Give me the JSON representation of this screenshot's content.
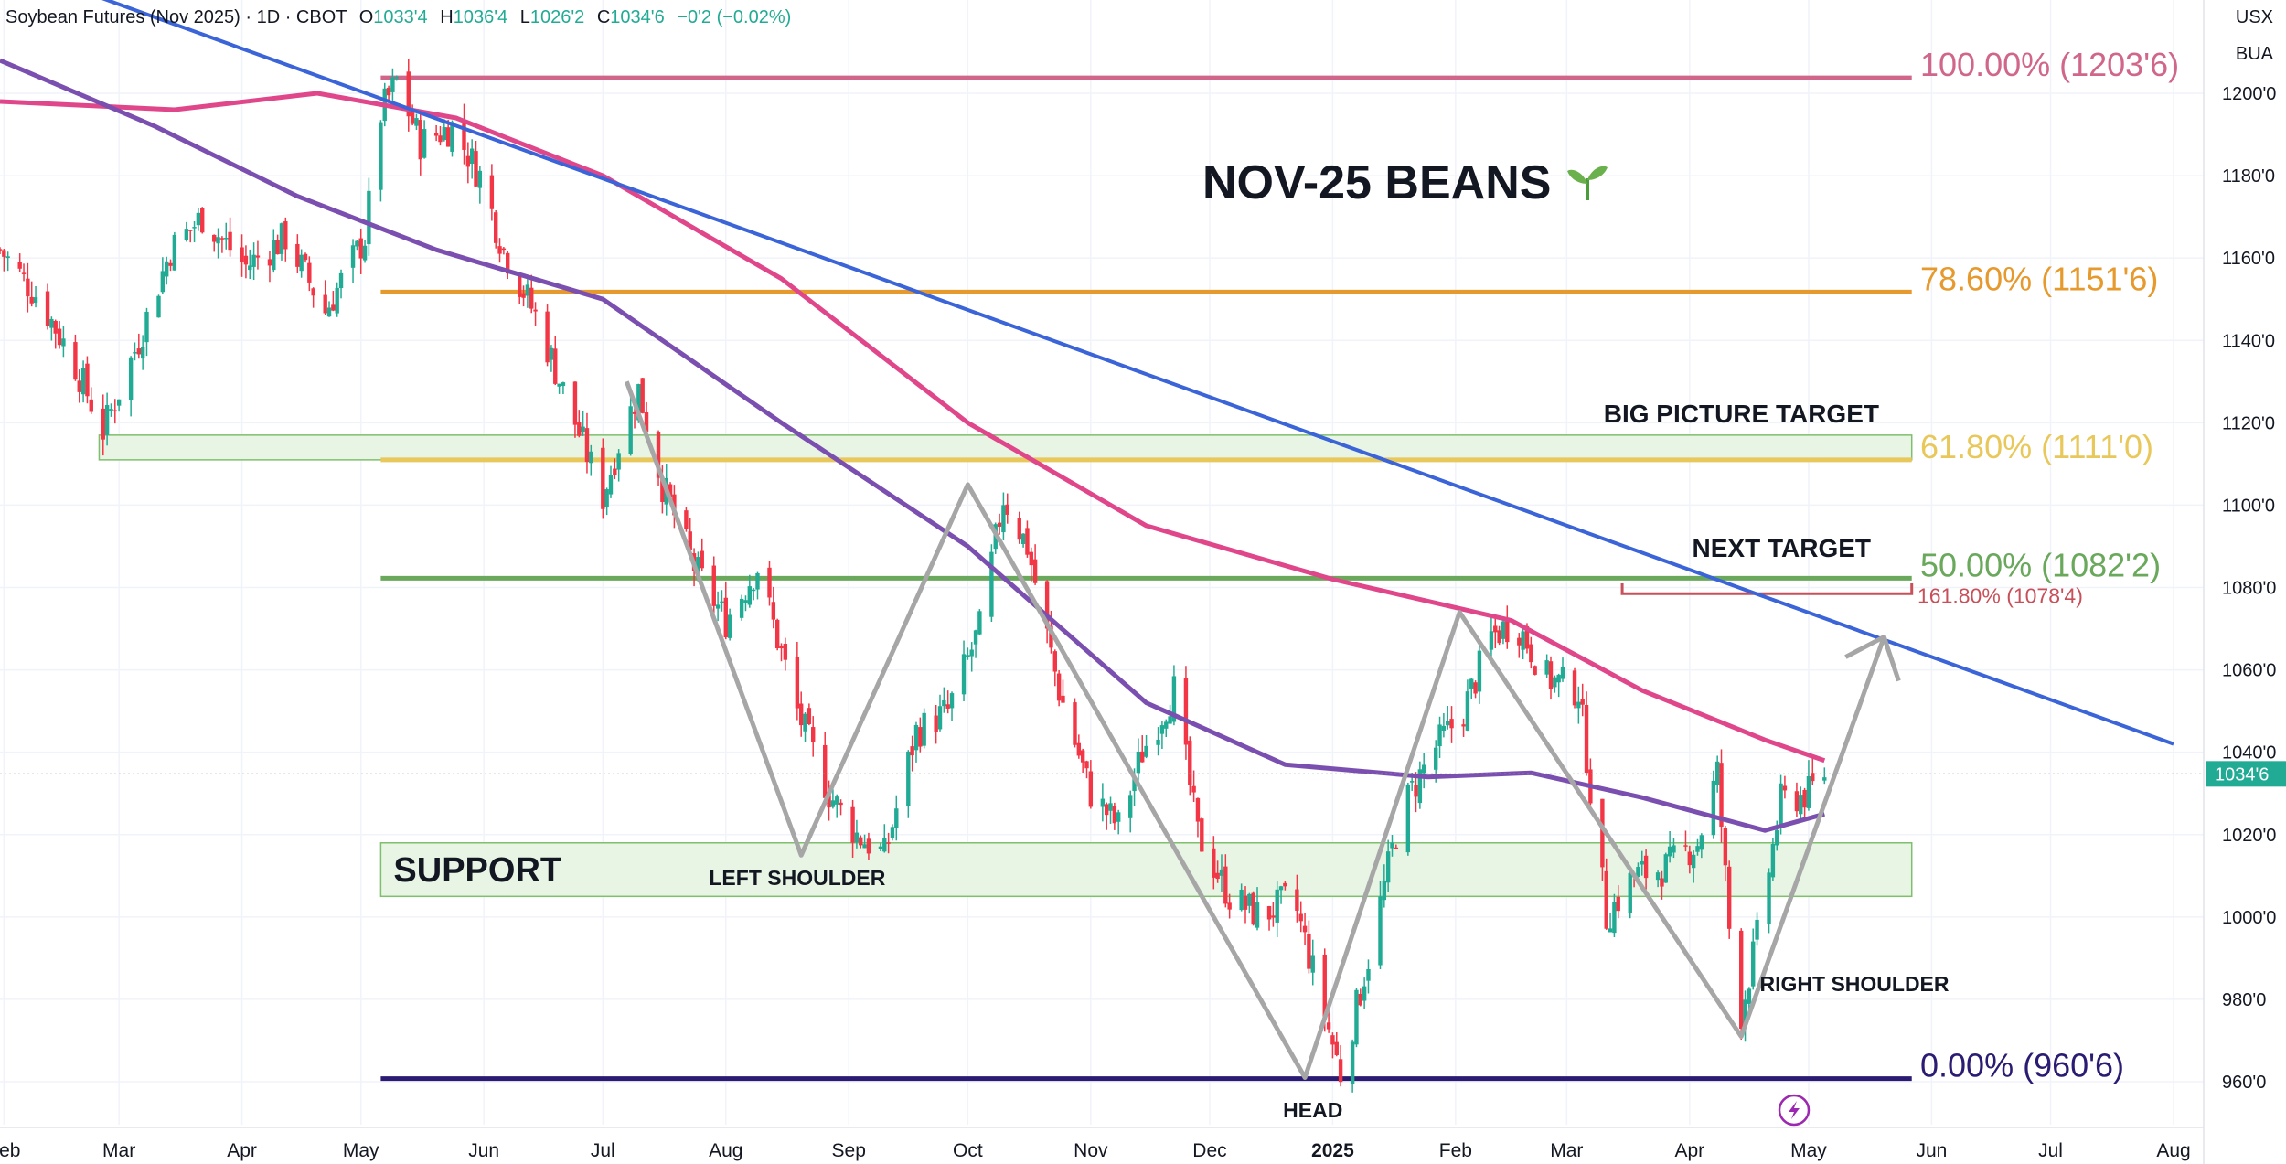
{
  "header": {
    "symbol": "Soybean Futures (Nov 2025) · 1D · CBOT",
    "open_label": "O",
    "open": "1033'4",
    "high_label": "H",
    "high": "1036'4",
    "low_label": "L",
    "low": "1026'2",
    "close_label": "C",
    "close": "1034'6",
    "change": "−0'2 (−0.02%)"
  },
  "units": {
    "currency": "USX",
    "account": "BUA"
  },
  "colors": {
    "up": "#22ab94",
    "down": "#f23645",
    "ma_pink": "#e0468a",
    "ma_purple": "#7a4fb0",
    "trend": "#3a64d8",
    "pattern": "#a6a6a6",
    "fib100": "#d0668a",
    "fib786": "#e69a2e",
    "fib618": "#e8c85a",
    "fib50": "#6aa85c",
    "fib0": "#2b1b72",
    "ext1618": "#c8505a",
    "zone_fill": "#e8f4e4",
    "zone_edge": "#7fbf6e",
    "price_tag": "#22ab94"
  },
  "chart_data": {
    "type": "candlestick",
    "title": "NOV-25 BEANS",
    "title_icon": "seedling-icon",
    "y_axis": {
      "range": [
        953,
        1211
      ],
      "ticks": [
        "1200'0",
        "1180'0",
        "1160'0",
        "1140'0",
        "1120'0",
        "1100'0",
        "1080'0",
        "1060'0",
        "1040'0",
        "1020'0",
        "1000'0",
        "980'0",
        "960'0"
      ],
      "tick_values": [
        1200,
        1180,
        1160,
        1140,
        1120,
        1100,
        1080,
        1060,
        1040,
        1020,
        1000,
        980,
        960
      ]
    },
    "x_axis": {
      "labels": [
        "Feb",
        "Mar",
        "Apr",
        "May",
        "Jun",
        "Jul",
        "Aug",
        "Sep",
        "Oct",
        "Nov",
        "Dec",
        "2025",
        "Feb",
        "Mar",
        "Apr",
        "May",
        "Jun",
        "Jul",
        "Aug"
      ],
      "dates": [
        "2024-02-01",
        "2024-03-01",
        "2024-04-01",
        "2024-05-01",
        "2024-06-01",
        "2024-07-01",
        "2024-08-01",
        "2024-09-01",
        "2024-10-01",
        "2024-11-01",
        "2024-12-01",
        "2025-01-01",
        "2025-02-01",
        "2025-03-01",
        "2025-04-01",
        "2025-05-01",
        "2025-06-01",
        "2025-07-01",
        "2025-08-01"
      ]
    },
    "last_price": {
      "value": 1034.75,
      "label": "1034'6"
    },
    "price_path": [
      [
        "2024-01-31",
        1162
      ],
      [
        "2024-02-10",
        1150
      ],
      [
        "2024-02-18",
        1136
      ],
      [
        "2024-02-26",
        1118
      ],
      [
        "2024-03-06",
        1140
      ],
      [
        "2024-03-14",
        1162
      ],
      [
        "2024-03-22",
        1170
      ],
      [
        "2024-04-02",
        1158
      ],
      [
        "2024-04-12",
        1165
      ],
      [
        "2024-04-22",
        1147
      ],
      [
        "2024-05-02",
        1165
      ],
      [
        "2024-05-06",
        1195
      ],
      [
        "2024-05-10",
        1203
      ],
      [
        "2024-05-16",
        1188
      ],
      [
        "2024-05-24",
        1192
      ],
      [
        "2024-05-31",
        1180
      ],
      [
        "2024-06-06",
        1162
      ],
      [
        "2024-06-14",
        1146
      ],
      [
        "2024-06-24",
        1120
      ],
      [
        "2024-07-01",
        1102
      ],
      [
        "2024-07-05",
        1115
      ],
      [
        "2024-07-10",
        1128
      ],
      [
        "2024-07-16",
        1105
      ],
      [
        "2024-07-24",
        1085
      ],
      [
        "2024-08-01",
        1072
      ],
      [
        "2024-08-09",
        1085
      ],
      [
        "2024-08-19",
        1050
      ],
      [
        "2024-08-27",
        1030
      ],
      [
        "2024-09-03",
        1020
      ],
      [
        "2024-09-10",
        1015
      ],
      [
        "2024-09-18",
        1045
      ],
      [
        "2024-09-26",
        1050
      ],
      [
        "2024-10-04",
        1070
      ],
      [
        "2024-10-10",
        1102
      ],
      [
        "2024-10-16",
        1090
      ],
      [
        "2024-10-24",
        1055
      ],
      [
        "2024-11-01",
        1030
      ],
      [
        "2024-11-08",
        1022
      ],
      [
        "2024-11-14",
        1040
      ],
      [
        "2024-11-22",
        1055
      ],
      [
        "2024-11-28",
        1020
      ],
      [
        "2024-12-06",
        1005
      ],
      [
        "2024-12-14",
        1000
      ],
      [
        "2024-12-22",
        1005
      ],
      [
        "2025-01-03",
        962
      ],
      [
        "2025-01-10",
        990
      ],
      [
        "2025-01-18",
        1025
      ],
      [
        "2025-01-26",
        1040
      ],
      [
        "2025-02-03",
        1050
      ],
      [
        "2025-02-10",
        1068
      ],
      [
        "2025-02-16",
        1072
      ],
      [
        "2025-02-24",
        1058
      ],
      [
        "2025-03-04",
        1055
      ],
      [
        "2025-03-11",
        1000
      ],
      [
        "2025-03-18",
        1010
      ],
      [
        "2025-03-26",
        1012
      ],
      [
        "2025-04-03",
        1018
      ],
      [
        "2025-04-08",
        1035
      ],
      [
        "2025-04-13",
        972
      ],
      [
        "2025-04-18",
        995
      ],
      [
        "2025-04-24",
        1028
      ],
      [
        "2025-05-01",
        1030
      ],
      [
        "2025-05-05",
        1035
      ]
    ],
    "moving_averages": [
      {
        "name": "",
        "color": "#e0468a",
        "points": [
          [
            "2024-01-31",
            1198
          ],
          [
            "2024-03-15",
            1196
          ],
          [
            "2024-04-20",
            1200
          ],
          [
            "2024-05-25",
            1194
          ],
          [
            "2024-07-01",
            1180
          ],
          [
            "2024-08-15",
            1155
          ],
          [
            "2024-10-01",
            1120
          ],
          [
            "2024-11-15",
            1095
          ],
          [
            "2025-01-01",
            1082
          ],
          [
            "2025-02-15",
            1072
          ],
          [
            "2025-03-20",
            1055
          ],
          [
            "2025-04-20",
            1043
          ],
          [
            "2025-05-05",
            1038
          ]
        ]
      },
      {
        "name": "",
        "color": "#7a4fb0",
        "points": [
          [
            "2024-01-31",
            1208
          ],
          [
            "2024-03-10",
            1192
          ],
          [
            "2024-04-15",
            1175
          ],
          [
            "2024-05-20",
            1162
          ],
          [
            "2024-07-01",
            1150
          ],
          [
            "2024-08-15",
            1120
          ],
          [
            "2024-10-01",
            1090
          ],
          [
            "2024-11-15",
            1052
          ],
          [
            "2024-12-20",
            1037
          ],
          [
            "2025-01-25",
            1034
          ],
          [
            "2025-02-20",
            1035
          ],
          [
            "2025-03-20",
            1029
          ],
          [
            "2025-04-20",
            1021
          ],
          [
            "2025-05-05",
            1025
          ]
        ]
      }
    ],
    "trendline": {
      "color": "#3a64d8",
      "from": [
        "2024-01-31",
        1232
      ],
      "to": [
        "2025-08-01",
        1042
      ]
    },
    "fib_levels": [
      {
        "label": "100.00% (1203'6)",
        "value": 1203.75,
        "color": "#d0668a"
      },
      {
        "label": "78.60% (1151'6)",
        "value": 1151.75,
        "color": "#e69a2e"
      },
      {
        "label": "61.80% (1111'0)",
        "value": 1111,
        "color": "#e8c85a"
      },
      {
        "label": "50.00% (1082'2)",
        "value": 1082.25,
        "color": "#6aa85c"
      },
      {
        "label": "0.00% (960'6)",
        "value": 960.75,
        "color": "#2b1b72"
      }
    ],
    "extension": {
      "label": "161.80% (1078'4)",
      "value": 1078.5,
      "color": "#c8505a"
    },
    "zones": [
      {
        "label": "SUPPORT",
        "from": "2024-05-06",
        "to": "2025-05-27",
        "low": 1005,
        "high": 1018
      },
      {
        "label": "",
        "from": "2024-02-25",
        "to": "2025-05-27",
        "low": 1111,
        "high": 1117
      }
    ],
    "pattern_line": [
      [
        "2024-07-07",
        1130
      ],
      [
        "2024-08-20",
        1015
      ],
      [
        "2024-10-01",
        1105
      ],
      [
        "2024-12-25",
        961
      ],
      [
        "2025-02-02",
        1074
      ],
      [
        "2025-04-14",
        971
      ],
      [
        "2025-05-20",
        1068
      ]
    ],
    "annotations": {
      "left_shoulder": "LEFT SHOULDER",
      "head": "HEAD",
      "right_shoulder": "RIGHT SHOULDER",
      "big_picture_target": "BIG PICTURE TARGET",
      "next_target": "NEXT TARGET"
    },
    "grid": true
  }
}
